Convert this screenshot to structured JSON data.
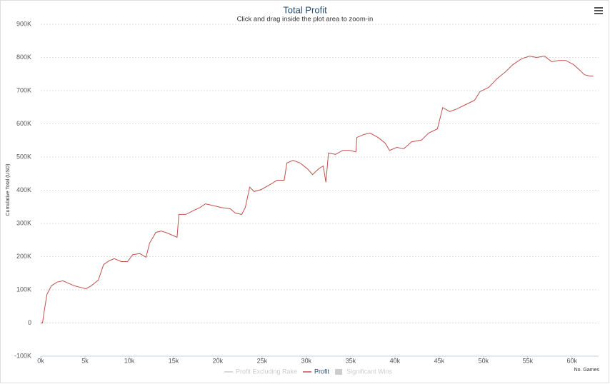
{
  "chart_data": {
    "type": "line",
    "title": "Total Profit",
    "subtitle": "Click and drag inside the plot area to zoom-in",
    "y_axis_label": "Cumulative Total (USD)",
    "x_axis_label": "No. Games",
    "xlim": [
      0,
      63000
    ],
    "ylim": [
      -100000,
      900000
    ],
    "xticks": [
      {
        "value": 0,
        "label": "0k"
      },
      {
        "value": 5000,
        "label": "5k"
      },
      {
        "value": 10000,
        "label": "10k"
      },
      {
        "value": 15000,
        "label": "15k"
      },
      {
        "value": 20000,
        "label": "20k"
      },
      {
        "value": 25000,
        "label": "25k"
      },
      {
        "value": 30000,
        "label": "30k"
      },
      {
        "value": 35000,
        "label": "35k"
      },
      {
        "value": 40000,
        "label": "40k"
      },
      {
        "value": 45000,
        "label": "45k"
      },
      {
        "value": 50000,
        "label": "50k"
      },
      {
        "value": 55000,
        "label": "55k"
      },
      {
        "value": 60000,
        "label": "60k"
      }
    ],
    "yticks": [
      {
        "value": -100000,
        "label": "-100K"
      },
      0,
      {
        "value": 100000,
        "label": "100K"
      },
      {
        "value": 200000,
        "label": "200K"
      },
      {
        "value": 300000,
        "label": "300K"
      },
      {
        "value": 400000,
        "label": "400K"
      },
      {
        "value": 500000,
        "label": "500K"
      },
      {
        "value": 600000,
        "label": "600K"
      },
      {
        "value": 700000,
        "label": "700K"
      },
      {
        "value": 800000,
        "label": "800K"
      },
      {
        "value": 900000,
        "label": "900K"
      }
    ],
    "grid": true,
    "x": [
      0,
      200,
      400,
      700,
      1200,
      1850,
      2500,
      3100,
      3800,
      4400,
      5100,
      5700,
      6500,
      7100,
      7700,
      8300,
      9100,
      9800,
      10400,
      11200,
      11900,
      12300,
      13000,
      13600,
      14300,
      15400,
      15600,
      16400,
      17200,
      18000,
      18600,
      19600,
      20400,
      21400,
      22000,
      22700,
      23100,
      23600,
      24100,
      24900,
      25900,
      26700,
      27500,
      27800,
      28500,
      29300,
      30100,
      30700,
      31400,
      31900,
      32200,
      32500,
      33300,
      34100,
      34900,
      35600,
      35700,
      36500,
      37200,
      38100,
      38900,
      39400,
      40200,
      41000,
      41900,
      43000,
      43800,
      44800,
      45400,
      46200,
      47000,
      48000,
      49000,
      49600,
      50600,
      51500,
      52500,
      53300,
      54300,
      55200,
      56000,
      56900,
      57700,
      58500,
      59300,
      60200,
      60900,
      61400,
      62000,
      62400
    ],
    "series": [
      {
        "name": "Profit",
        "color": "#c0504d",
        "values": [
          0,
          0,
          37000,
          86000,
          112000,
          123000,
          127000,
          120000,
          112000,
          108000,
          103000,
          112000,
          129000,
          176000,
          187000,
          194000,
          185000,
          185000,
          206000,
          209000,
          198000,
          241000,
          273000,
          277000,
          271000,
          258000,
          327000,
          327000,
          338000,
          348000,
          359000,
          353000,
          348000,
          344000,
          331000,
          327000,
          348000,
          409000,
          396000,
          402000,
          417000,
          430000,
          430000,
          482000,
          490000,
          482000,
          465000,
          447000,
          465000,
          473000,
          424000,
          512000,
          508000,
          520000,
          520000,
          516000,
          559000,
          568000,
          572000,
          559000,
          542000,
          520000,
          529000,
          525000,
          546000,
          551000,
          572000,
          585000,
          649000,
          637000,
          645000,
          658000,
          671000,
          697000,
          710000,
          735000,
          757000,
          778000,
          796000,
          804000,
          800000,
          804000,
          787000,
          791000,
          791000,
          778000,
          761000,
          748000,
          744000,
          744000
        ]
      }
    ],
    "hidden_legend": [
      {
        "name": "Profit Excluding Rake",
        "symbol": "line",
        "color": "#cccccc"
      },
      {
        "name": "Significant Wins",
        "symbol": "box",
        "color": "#cccccc"
      }
    ]
  }
}
